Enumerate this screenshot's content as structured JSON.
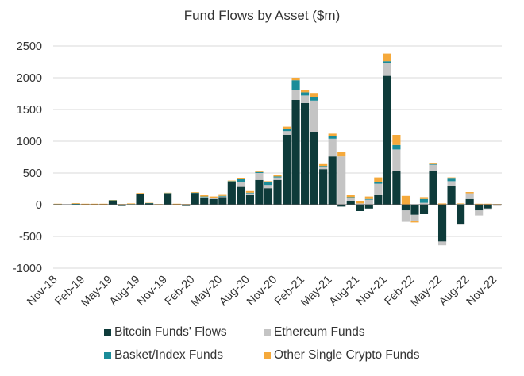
{
  "chart_data": {
    "type": "bar",
    "stacked": true,
    "title": "Fund Flows by Asset ($m)",
    "xlabel": "",
    "ylabel": "",
    "ylim": [
      -1000,
      2500
    ],
    "yticks": [
      -1000,
      -500,
      0,
      500,
      1000,
      1500,
      2000,
      2500
    ],
    "grid": true,
    "legend_position": "bottom",
    "x_tick_labels": [
      "Nov-18",
      "Feb-19",
      "May-19",
      "Aug-19",
      "Nov-19",
      "Feb-20",
      "May-20",
      "Aug-20",
      "Nov-20",
      "Feb-21",
      "May-21",
      "Aug-21",
      "Nov-21",
      "Feb-22",
      "May-22",
      "Aug-22",
      "Nov-22"
    ],
    "categories": [
      "Nov-18",
      "Dec-18",
      "Jan-19",
      "Feb-19",
      "Mar-19",
      "Apr-19",
      "May-19",
      "Jun-19",
      "Jul-19",
      "Aug-19",
      "Sep-19",
      "Oct-19",
      "Nov-19",
      "Dec-19",
      "Jan-20",
      "Feb-20",
      "Mar-20",
      "Apr-20",
      "May-20",
      "Jun-20",
      "Jul-20",
      "Aug-20",
      "Sep-20",
      "Oct-20",
      "Nov-20",
      "Dec-20",
      "Jan-21",
      "Feb-21",
      "Mar-21",
      "Apr-21",
      "May-21",
      "Jun-21",
      "Jul-21",
      "Aug-21",
      "Sep-21",
      "Oct-21",
      "Nov-21",
      "Dec-21",
      "Jan-22",
      "Feb-22",
      "Mar-22",
      "Apr-22",
      "May-22",
      "Jun-22",
      "Jul-22",
      "Aug-22",
      "Sep-22",
      "Oct-22",
      "Nov-22"
    ],
    "series": [
      {
        "name": "Bitcoin Funds' Flows",
        "color": "#0e3b3a",
        "values": [
          5,
          -5,
          5,
          -5,
          -10,
          -5,
          60,
          -20,
          5,
          170,
          20,
          -10,
          180,
          -10,
          -20,
          185,
          110,
          90,
          120,
          350,
          280,
          150,
          390,
          260,
          390,
          1100,
          1650,
          1600,
          1150,
          560,
          760,
          -30,
          60,
          -100,
          -60,
          150,
          2030,
          530,
          -90,
          -160,
          -150,
          530,
          -580,
          300,
          -310,
          90,
          -90,
          -60,
          -10
        ]
      },
      {
        "name": "Ethereum Funds",
        "color": "#c4c4c4",
        "values": [
          0,
          0,
          0,
          0,
          0,
          0,
          0,
          0,
          0,
          0,
          0,
          0,
          0,
          0,
          0,
          0,
          10,
          10,
          10,
          10,
          70,
          30,
          110,
          50,
          40,
          60,
          160,
          120,
          490,
          40,
          280,
          760,
          40,
          20,
          80,
          180,
          200,
          340,
          -180,
          -100,
          30,
          100,
          -60,
          70,
          -10,
          90,
          -80,
          -20,
          -10
        ]
      },
      {
        "name": "Basket/Index Funds",
        "color": "#1a8c99",
        "values": [
          5,
          0,
          10,
          5,
          5,
          5,
          10,
          5,
          5,
          5,
          5,
          5,
          5,
          5,
          5,
          5,
          10,
          10,
          10,
          10,
          50,
          10,
          15,
          40,
          15,
          40,
          150,
          50,
          60,
          10,
          40,
          0,
          20,
          0,
          10,
          30,
          30,
          70,
          0,
          0,
          60,
          10,
          0,
          40,
          10,
          0,
          5,
          5,
          5
        ]
      },
      {
        "name": "Other Single Crypto Funds",
        "color": "#f5a93b",
        "values": [
          5,
          5,
          10,
          10,
          10,
          10,
          5,
          5,
          10,
          10,
          5,
          5,
          5,
          10,
          5,
          10,
          20,
          20,
          15,
          10,
          20,
          25,
          20,
          20,
          20,
          30,
          40,
          40,
          60,
          30,
          40,
          70,
          30,
          40,
          40,
          70,
          120,
          160,
          140,
          -20,
          30,
          20,
          20,
          20,
          10,
          20,
          10,
          10,
          5
        ]
      }
    ]
  }
}
